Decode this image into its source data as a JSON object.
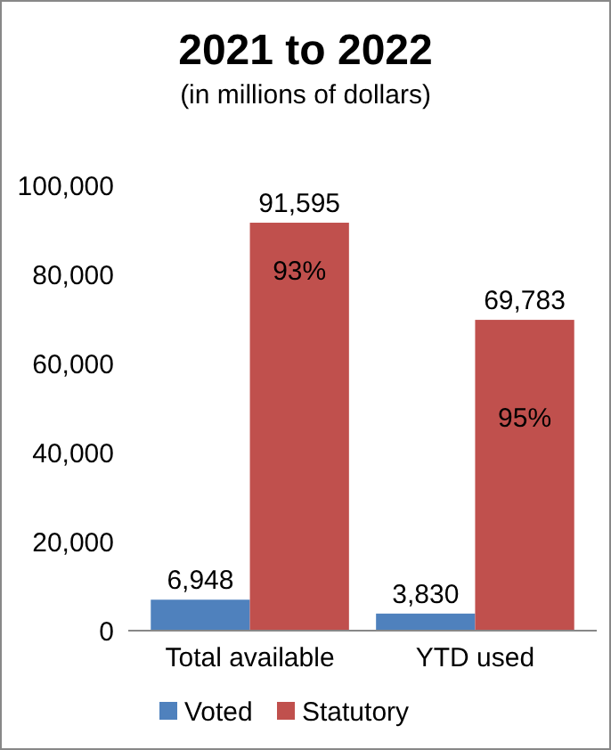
{
  "chart_data": {
    "type": "bar",
    "title": "2021 to 2022",
    "subtitle": "(in millions of dollars)",
    "categories": [
      "Total available",
      "YTD used"
    ],
    "series": [
      {
        "name": "Voted",
        "color": "#4f81bd",
        "values": [
          6948,
          3830
        ],
        "value_labels": [
          "6,948",
          "3,830"
        ]
      },
      {
        "name": "Statutory",
        "color": "#c0504d",
        "values": [
          91595,
          69783
        ],
        "value_labels": [
          "91,595",
          "69,783"
        ]
      }
    ],
    "ylim": [
      0,
      100000
    ],
    "yticks": [
      {
        "value": 0,
        "label": "0"
      },
      {
        "value": 20000,
        "label": "20,000"
      },
      {
        "value": 40000,
        "label": "40,000"
      },
      {
        "value": 60000,
        "label": "60,000"
      },
      {
        "value": 80000,
        "label": "80,000"
      },
      {
        "value": 100000,
        "label": "100,000"
      }
    ],
    "grid": false,
    "legend": "bottom",
    "annotations": [
      {
        "text": "93%",
        "x": "Total available",
        "y": 81000
      },
      {
        "text": "95%",
        "x": "YTD used",
        "y": 48000
      }
    ]
  }
}
